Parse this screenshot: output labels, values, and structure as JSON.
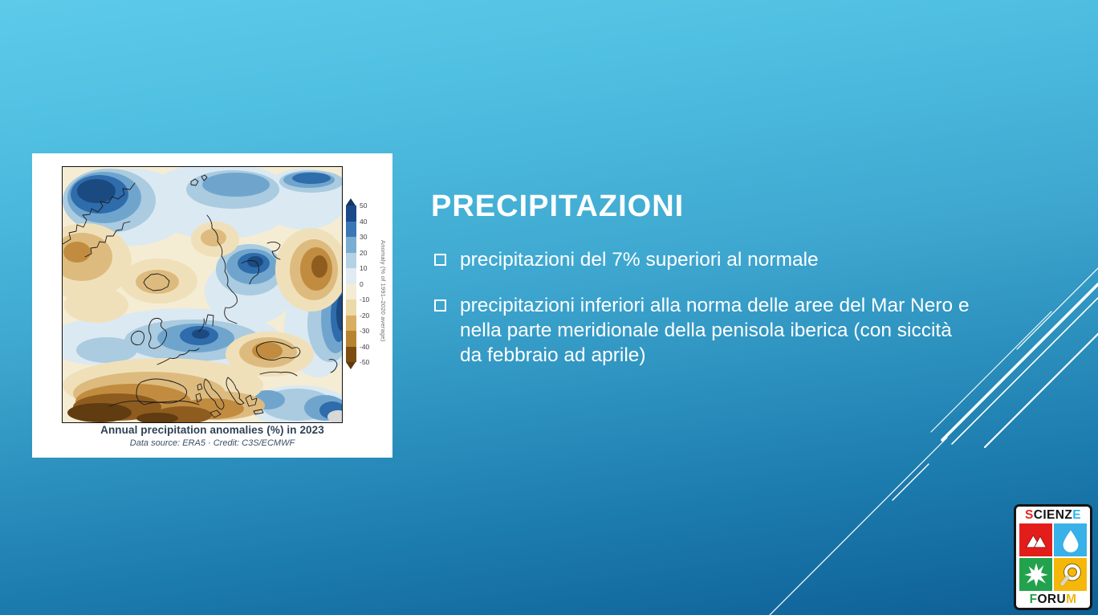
{
  "slide": {
    "title": "PRECIPITAZIONI",
    "bullets": [
      {
        "text": "precipitazioni del 7% superiori al normale"
      },
      {
        "text": "precipitazioni inferiori alla norma delle aree del Mar Nero e nella parte meridionale della penisola iberica (con siccità da febbraio ad aprile)"
      }
    ],
    "background": {
      "gradient_top": "#5dcae9",
      "gradient_bottom": "#0d5f96",
      "text_color": "#ffffff"
    }
  },
  "figure": {
    "caption": "Annual precipitation anomalies (%) in 2023",
    "credit": "Data source: ERA5 · Credit: C3S/ECMWF",
    "colorbar": {
      "label": "Anomaly (% of 1991–2020 average)",
      "tick_labels": [
        "50",
        "40",
        "30",
        "20",
        "10",
        "0",
        "-10",
        "-20",
        "-30",
        "-40",
        "-50"
      ],
      "segment_colors": [
        "#1b4a88",
        "#3a77b5",
        "#7aadd2",
        "#b5d2e5",
        "#e0ebf3",
        "#f5ecd4",
        "#ecd9a8",
        "#d8af62",
        "#b8832e",
        "#7c4c10"
      ],
      "arrow_top_color": "#16355f",
      "arrow_bottom_color": "#5c3a10"
    }
  },
  "logo": {
    "top_segments": [
      {
        "text": "S",
        "color": "#e8251f"
      },
      {
        "text": "CIENZ",
        "color": "#141414"
      },
      {
        "text": "E",
        "color": "#2bb7ea"
      }
    ],
    "bottom_segments": [
      {
        "text": "F",
        "color": "#23a14a"
      },
      {
        "text": "ORU",
        "color": "#141414"
      },
      {
        "text": "M",
        "color": "#f2b510"
      }
    ],
    "tile_colors": {
      "mountain": "#e31d1a",
      "water_drop": "#38b0e8",
      "starburst": "#22a24c",
      "magnifier": "#f5b70a"
    }
  }
}
